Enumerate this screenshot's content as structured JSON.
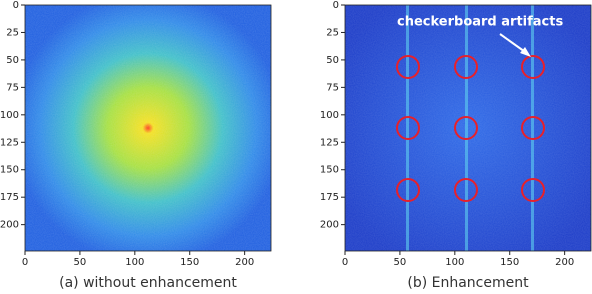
{
  "chart_data": [
    {
      "type": "image",
      "caption": "(a) without enhancement",
      "xlim": [
        0,
        224
      ],
      "ylim": [
        224,
        0
      ],
      "xticks": [
        0,
        50,
        100,
        150,
        200
      ],
      "yticks": [
        0,
        25,
        50,
        75,
        100,
        125,
        150,
        175,
        200
      ]
    },
    {
      "type": "image",
      "caption": "(b) Enhancement",
      "annotation": "checkerboard artifacts",
      "xlim": [
        0,
        224
      ],
      "ylim": [
        224,
        0
      ],
      "xticks": [
        0,
        50,
        100,
        150,
        200
      ],
      "yticks": [
        0,
        25,
        50,
        75,
        100,
        125,
        150,
        175,
        200
      ]
    }
  ]
}
